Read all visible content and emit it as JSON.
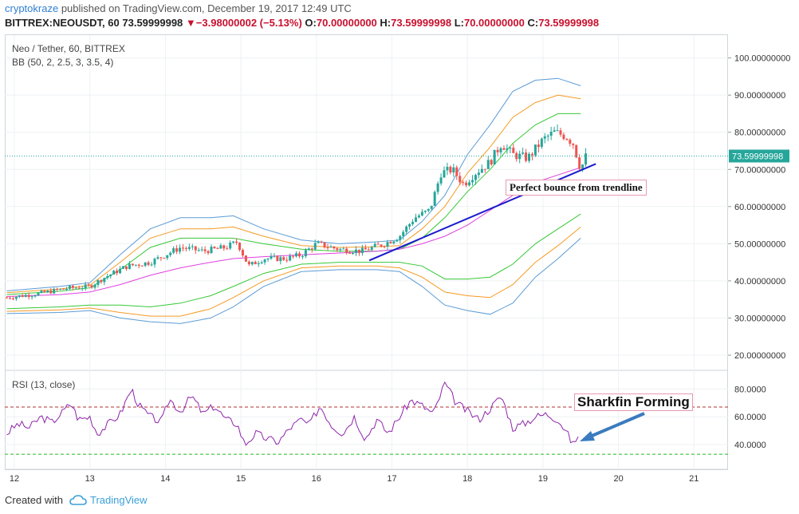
{
  "header": {
    "user": "cryptokraze",
    "published": "published on TradingView.com, December 19, 2017 12:49 UTC",
    "symbol": "BITTREX:NEOUSDT, 60",
    "last": "73.59999998",
    "change_arrow": "▼",
    "change": "−3.98000002 (−5.13%)",
    "o_label": "O:",
    "o_value": "70.00000000",
    "h_label": "H:",
    "h_value": "73.59999998",
    "l_label": "L:",
    "l_value": "70.00000000",
    "c_label": "C:",
    "c_value": "73.59999998"
  },
  "main_pane": {
    "title": "Neo / Tether, 60, BITTREX",
    "indicator": "BB (50, 2, 2.5, 3, 3.5, 4)",
    "price_ticks": [
      "100.00000000",
      "90.00000000",
      "80.00000000",
      "70.00000000",
      "60.00000000",
      "50.00000000",
      "40.00000000",
      "30.00000000",
      "20.00000000"
    ],
    "last_price_tag": "73.59999998",
    "annotation": "Perfect bounce from trendline"
  },
  "rsi_pane": {
    "title": "RSI (13, close)",
    "ticks": [
      "80.0000",
      "60.0000",
      "40.0000"
    ],
    "annotation": "Sharkfin Forming"
  },
  "time_axis": [
    "12",
    "13",
    "14",
    "15",
    "16",
    "17",
    "18",
    "19",
    "20",
    "21"
  ],
  "footer": {
    "created_with": "Created with",
    "brand": "TradingView"
  },
  "colors": {
    "up": "#26a69a",
    "down": "#ef5350",
    "bb_outer": "#5b9bd5",
    "bb_mid": "#f59a23",
    "bb_inner": "#37c837",
    "basis": "#e040e0",
    "trendline": "#1a1acc",
    "rsi": "#8e24aa",
    "rsi_upper": "#b03030",
    "rsi_lower": "#22bb22"
  },
  "chart_data": [
    {
      "type": "candlestick",
      "title": "Neo / Tether, 60, BITTREX",
      "x_ticks": [
        "12",
        "13",
        "14",
        "15",
        "16",
        "17",
        "18",
        "19",
        "20",
        "21"
      ],
      "ylim": [
        15,
        107
      ],
      "close_path": [
        [
          11.9,
          35.5
        ],
        [
          12.3,
          36.5
        ],
        [
          12.7,
          38
        ],
        [
          13.0,
          38.5
        ],
        [
          13.2,
          41
        ],
        [
          13.5,
          44
        ],
        [
          13.8,
          45
        ],
        [
          14.0,
          47
        ],
        [
          14.2,
          49
        ],
        [
          14.5,
          48
        ],
        [
          14.8,
          49
        ],
        [
          14.95,
          50.5
        ],
        [
          15.1,
          44
        ],
        [
          15.3,
          46
        ],
        [
          15.6,
          46
        ],
        [
          15.8,
          47
        ],
        [
          16.0,
          50
        ],
        [
          16.3,
          48.5
        ],
        [
          16.6,
          48
        ],
        [
          16.9,
          50
        ],
        [
          17.1,
          52
        ],
        [
          17.3,
          57
        ],
        [
          17.5,
          59
        ],
        [
          17.65,
          69
        ],
        [
          17.8,
          70
        ],
        [
          17.95,
          66
        ],
        [
          18.1,
          69
        ],
        [
          18.3,
          72
        ],
        [
          18.45,
          77
        ],
        [
          18.6,
          74
        ],
        [
          18.8,
          73
        ],
        [
          19.0,
          78
        ],
        [
          19.15,
          80
        ],
        [
          19.3,
          79
        ],
        [
          19.4,
          77
        ],
        [
          19.5,
          70
        ],
        [
          19.57,
          73.6
        ]
      ],
      "bb_upper_outer": [
        [
          11.9,
          37.3
        ],
        [
          12.6,
          38.5
        ],
        [
          13.0,
          39.5
        ],
        [
          13.4,
          47
        ],
        [
          13.8,
          54
        ],
        [
          14.2,
          57
        ],
        [
          14.6,
          57
        ],
        [
          14.9,
          57.5
        ],
        [
          15.3,
          54
        ],
        [
          15.8,
          51
        ],
        [
          16.3,
          50
        ],
        [
          16.8,
          50.5
        ],
        [
          17.1,
          51
        ],
        [
          17.4,
          56
        ],
        [
          17.7,
          63
        ],
        [
          18.0,
          74
        ],
        [
          18.3,
          82
        ],
        [
          18.6,
          91
        ],
        [
          18.9,
          94
        ],
        [
          19.2,
          94.5
        ],
        [
          19.5,
          92.5
        ]
      ],
      "bb_upper_mid": [
        [
          11.9,
          36.8
        ],
        [
          12.6,
          37.8
        ],
        [
          13.0,
          38.8
        ],
        [
          13.4,
          45
        ],
        [
          13.8,
          51.5
        ],
        [
          14.2,
          54
        ],
        [
          14.6,
          54
        ],
        [
          14.9,
          54.5
        ],
        [
          15.3,
          52
        ],
        [
          15.8,
          49.5
        ],
        [
          16.3,
          49
        ],
        [
          16.8,
          49.2
        ],
        [
          17.1,
          49.5
        ],
        [
          17.4,
          54
        ],
        [
          17.7,
          60
        ],
        [
          18.0,
          69
        ],
        [
          18.3,
          76
        ],
        [
          18.6,
          84
        ],
        [
          18.9,
          88
        ],
        [
          19.2,
          90
        ],
        [
          19.5,
          89
        ]
      ],
      "bb_upper_inner": [
        [
          11.9,
          36.3
        ],
        [
          12.6,
          37.2
        ],
        [
          13.0,
          38.1
        ],
        [
          13.4,
          43
        ],
        [
          13.8,
          49
        ],
        [
          14.2,
          51.5
        ],
        [
          14.6,
          51.5
        ],
        [
          14.9,
          51.5
        ],
        [
          15.3,
          50
        ],
        [
          15.8,
          48.5
        ],
        [
          16.3,
          48
        ],
        [
          16.8,
          48
        ],
        [
          17.1,
          48.5
        ],
        [
          17.4,
          51.5
        ],
        [
          17.7,
          57
        ],
        [
          18.0,
          64
        ],
        [
          18.3,
          70
        ],
        [
          18.6,
          77
        ],
        [
          18.9,
          82
        ],
        [
          19.2,
          85
        ],
        [
          19.5,
          85
        ]
      ],
      "bb_basis": [
        [
          11.9,
          35.8
        ],
        [
          12.6,
          36.3
        ],
        [
          13.0,
          37
        ],
        [
          13.4,
          39
        ],
        [
          13.8,
          41.5
        ],
        [
          14.2,
          43.5
        ],
        [
          14.6,
          45
        ],
        [
          14.9,
          46
        ],
        [
          15.3,
          46.5
        ],
        [
          15.8,
          47
        ],
        [
          16.3,
          47.5
        ],
        [
          16.8,
          48
        ],
        [
          17.1,
          48.5
        ],
        [
          17.4,
          50
        ],
        [
          17.7,
          52
        ],
        [
          18.0,
          55
        ],
        [
          18.3,
          59
        ],
        [
          18.6,
          63
        ],
        [
          18.9,
          66.5
        ],
        [
          19.2,
          68.5
        ],
        [
          19.5,
          70.5
        ]
      ],
      "bb_lower_inner": [
        [
          11.9,
          32.5
        ],
        [
          12.6,
          33
        ],
        [
          13.0,
          33.5
        ],
        [
          13.4,
          33.5
        ],
        [
          13.8,
          33
        ],
        [
          14.2,
          34
        ],
        [
          14.6,
          36
        ],
        [
          14.9,
          38.5
        ],
        [
          15.3,
          42
        ],
        [
          15.8,
          44.5
        ],
        [
          16.3,
          45
        ],
        [
          16.8,
          45
        ],
        [
          17.1,
          45
        ],
        [
          17.4,
          44
        ],
        [
          17.7,
          40.5
        ],
        [
          18.0,
          40.5
        ],
        [
          18.3,
          41
        ],
        [
          18.6,
          44.5
        ],
        [
          18.9,
          50
        ],
        [
          19.2,
          54
        ],
        [
          19.5,
          58
        ]
      ],
      "bb_lower_mid": [
        [
          11.9,
          31.8
        ],
        [
          12.6,
          32.2
        ],
        [
          13.0,
          32.7
        ],
        [
          13.4,
          31.5
        ],
        [
          13.8,
          30.5
        ],
        [
          14.2,
          30.5
        ],
        [
          14.6,
          32.5
        ],
        [
          14.9,
          35.5
        ],
        [
          15.3,
          40
        ],
        [
          15.8,
          43.5
        ],
        [
          16.3,
          44
        ],
        [
          16.8,
          44
        ],
        [
          17.1,
          43.5
        ],
        [
          17.4,
          41
        ],
        [
          17.7,
          37
        ],
        [
          18.0,
          36
        ],
        [
          18.3,
          35.5
        ],
        [
          18.6,
          39
        ],
        [
          18.9,
          45
        ],
        [
          19.2,
          49.5
        ],
        [
          19.5,
          54.5
        ]
      ],
      "bb_lower_outer": [
        [
          11.9,
          31.2
        ],
        [
          12.6,
          31.5
        ],
        [
          13.0,
          32
        ],
        [
          13.4,
          30
        ],
        [
          13.8,
          29
        ],
        [
          14.2,
          28.5
        ],
        [
          14.6,
          30
        ],
        [
          14.9,
          33
        ],
        [
          15.3,
          38.5
        ],
        [
          15.8,
          42.5
        ],
        [
          16.3,
          43
        ],
        [
          16.8,
          43
        ],
        [
          17.1,
          42.5
        ],
        [
          17.4,
          38.5
        ],
        [
          17.7,
          33.5
        ],
        [
          18.0,
          32
        ],
        [
          18.3,
          31
        ],
        [
          18.6,
          34
        ],
        [
          18.9,
          41
        ],
        [
          19.2,
          46
        ],
        [
          19.5,
          51.5
        ]
      ],
      "trendline": [
        [
          16.7,
          45.5
        ],
        [
          19.7,
          71.5
        ]
      ],
      "last_price": 73.59999998
    },
    {
      "type": "line",
      "title": "RSI (13, close)",
      "x_ticks": [
        "12",
        "13",
        "14",
        "15",
        "16",
        "17",
        "18",
        "19",
        "20",
        "21"
      ],
      "ylim": [
        27,
        90
      ],
      "upper_band": 67,
      "lower_band": 33,
      "rsi": [
        [
          11.9,
          48
        ],
        [
          12.05,
          55
        ],
        [
          12.2,
          52
        ],
        [
          12.35,
          60
        ],
        [
          12.5,
          56
        ],
        [
          12.65,
          64
        ],
        [
          12.75,
          70
        ],
        [
          12.85,
          58
        ],
        [
          13.0,
          60
        ],
        [
          13.1,
          48
        ],
        [
          13.25,
          55
        ],
        [
          13.4,
          62
        ],
        [
          13.55,
          80
        ],
        [
          13.65,
          68
        ],
        [
          13.8,
          60
        ],
        [
          13.95,
          56
        ],
        [
          14.05,
          73
        ],
        [
          14.2,
          64
        ],
        [
          14.35,
          75
        ],
        [
          14.5,
          62
        ],
        [
          14.65,
          68
        ],
        [
          14.8,
          58
        ],
        [
          14.95,
          55
        ],
        [
          15.05,
          40
        ],
        [
          15.2,
          48
        ],
        [
          15.35,
          44
        ],
        [
          15.5,
          42
        ],
        [
          15.65,
          52
        ],
        [
          15.8,
          58
        ],
        [
          15.9,
          54
        ],
        [
          16.05,
          68
        ],
        [
          16.2,
          54
        ],
        [
          16.35,
          48
        ],
        [
          16.5,
          60
        ],
        [
          16.65,
          44
        ],
        [
          16.8,
          58
        ],
        [
          16.95,
          48
        ],
        [
          17.1,
          60
        ],
        [
          17.25,
          72
        ],
        [
          17.4,
          68
        ],
        [
          17.55,
          62
        ],
        [
          17.7,
          84
        ],
        [
          17.85,
          70
        ],
        [
          18.0,
          64
        ],
        [
          18.15,
          58
        ],
        [
          18.3,
          66
        ],
        [
          18.45,
          75
        ],
        [
          18.6,
          52
        ],
        [
          18.75,
          55
        ],
        [
          18.9,
          60
        ],
        [
          19.05,
          62
        ],
        [
          19.2,
          58
        ],
        [
          19.3,
          50
        ],
        [
          19.4,
          40
        ],
        [
          19.47,
          47
        ]
      ]
    }
  ]
}
